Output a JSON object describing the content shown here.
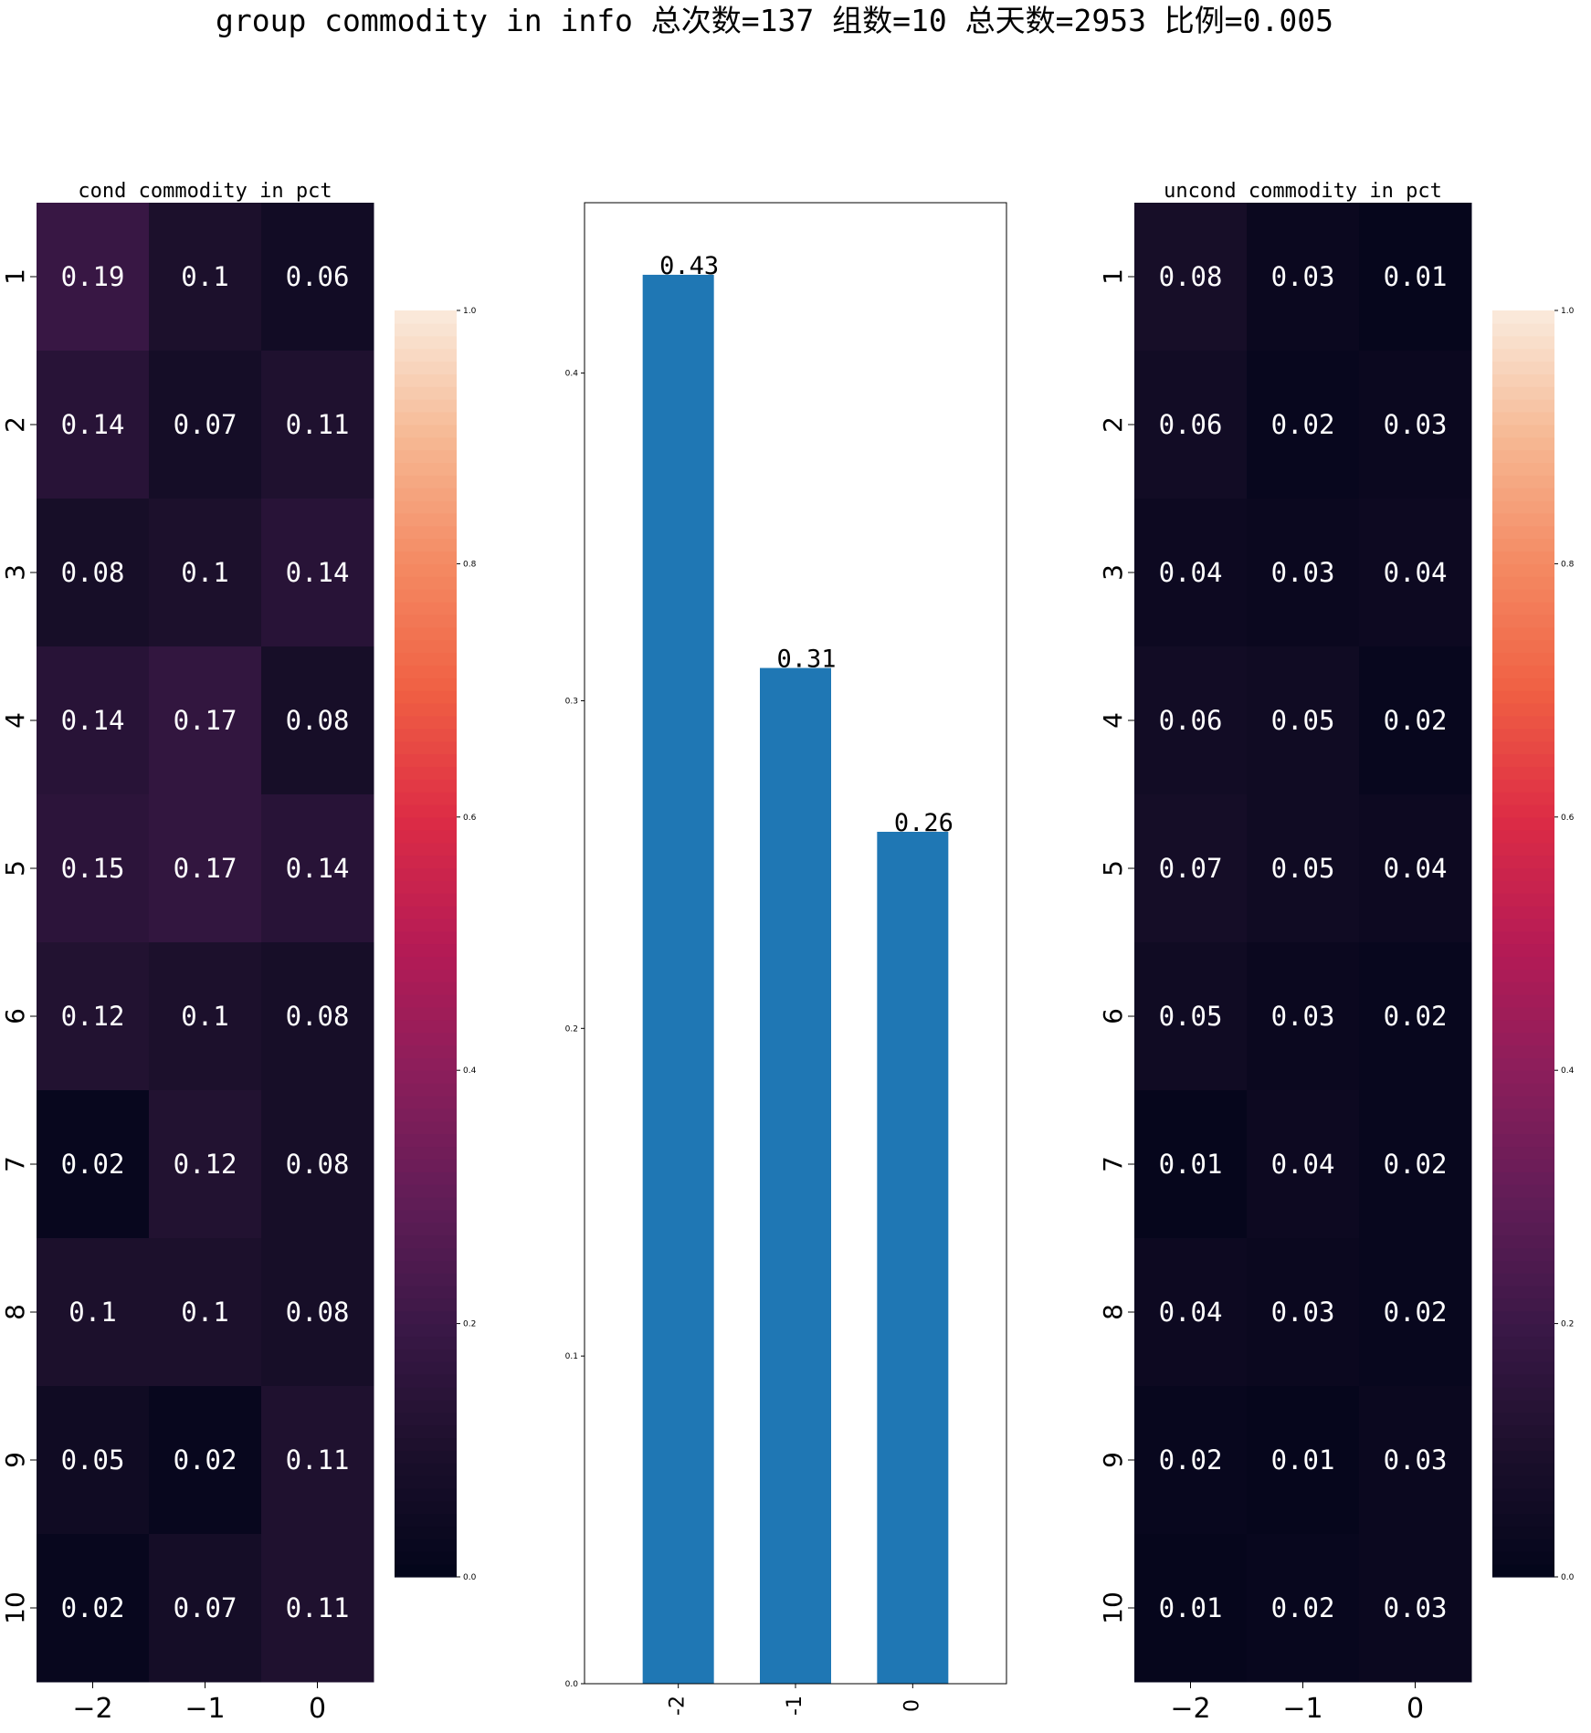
{
  "figure": {
    "title": "group commodity in info 总次数=137 组数=10 总天数=2953 比例=0.005"
  },
  "chart_data": [
    {
      "type": "heatmap",
      "title": "cond commodity in pct",
      "x_labels": [
        "−2",
        "−1",
        "0"
      ],
      "y_labels": [
        "1",
        "2",
        "3",
        "4",
        "5",
        "6",
        "7",
        "8",
        "9",
        "10"
      ],
      "values": [
        [
          0.19,
          0.1,
          0.06
        ],
        [
          0.14,
          0.07,
          0.11
        ],
        [
          0.08,
          0.1,
          0.14
        ],
        [
          0.14,
          0.17,
          0.08
        ],
        [
          0.15,
          0.17,
          0.14
        ],
        [
          0.12,
          0.1,
          0.08
        ],
        [
          0.02,
          0.12,
          0.08
        ],
        [
          0.1,
          0.1,
          0.08
        ],
        [
          0.05,
          0.02,
          0.11
        ],
        [
          0.02,
          0.07,
          0.11
        ]
      ],
      "value_labels": [
        [
          "0.19",
          "0.1",
          "0.06"
        ],
        [
          "0.14",
          "0.07",
          "0.11"
        ],
        [
          "0.08",
          "0.1",
          "0.14"
        ],
        [
          "0.14",
          "0.17",
          "0.08"
        ],
        [
          "0.15",
          "0.17",
          "0.14"
        ],
        [
          "0.12",
          "0.1",
          "0.08"
        ],
        [
          "0.02",
          "0.12",
          "0.08"
        ],
        [
          "0.1",
          "0.1",
          "0.08"
        ],
        [
          "0.05",
          "0.02",
          "0.11"
        ],
        [
          "0.02",
          "0.07",
          "0.11"
        ]
      ],
      "colorbar": {
        "range": [
          0,
          1
        ],
        "ticks": [
          "0.0",
          "0.2",
          "0.4",
          "0.6",
          "0.8",
          "1.0"
        ],
        "colormap": "rocket"
      }
    },
    {
      "type": "bar",
      "title": "",
      "categories": [
        "-2",
        "-1",
        "0"
      ],
      "values": [
        0.43,
        0.31,
        0.26
      ],
      "value_labels": [
        "0.43",
        "0.31",
        "0.26"
      ],
      "bar_color": "#1f77b4",
      "ylim": [
        0,
        0.452
      ],
      "y_ticks": [
        "0.0",
        "0.1",
        "0.2",
        "0.3",
        "0.4"
      ]
    },
    {
      "type": "heatmap",
      "title": "uncond commodity in pct",
      "x_labels": [
        "−2",
        "−1",
        "0"
      ],
      "y_labels": [
        "1",
        "2",
        "3",
        "4",
        "5",
        "6",
        "7",
        "8",
        "9",
        "10"
      ],
      "values": [
        [
          0.08,
          0.03,
          0.01
        ],
        [
          0.06,
          0.02,
          0.03
        ],
        [
          0.04,
          0.03,
          0.04
        ],
        [
          0.06,
          0.05,
          0.02
        ],
        [
          0.07,
          0.05,
          0.04
        ],
        [
          0.05,
          0.03,
          0.02
        ],
        [
          0.01,
          0.04,
          0.02
        ],
        [
          0.04,
          0.03,
          0.02
        ],
        [
          0.02,
          0.01,
          0.03
        ],
        [
          0.01,
          0.02,
          0.03
        ]
      ],
      "value_labels": [
        [
          "0.08",
          "0.03",
          "0.01"
        ],
        [
          "0.06",
          "0.02",
          "0.03"
        ],
        [
          "0.04",
          "0.03",
          "0.04"
        ],
        [
          "0.06",
          "0.05",
          "0.02"
        ],
        [
          "0.07",
          "0.05",
          "0.04"
        ],
        [
          "0.05",
          "0.03",
          "0.02"
        ],
        [
          "0.01",
          "0.04",
          "0.02"
        ],
        [
          "0.04",
          "0.03",
          "0.02"
        ],
        [
          "0.02",
          "0.01",
          "0.03"
        ],
        [
          "0.01",
          "0.02",
          "0.03"
        ]
      ],
      "colorbar": {
        "range": [
          0,
          1
        ],
        "ticks": [
          "0.0",
          "0.2",
          "0.4",
          "0.6",
          "0.8",
          "1.0"
        ],
        "colormap": "rocket"
      }
    }
  ]
}
